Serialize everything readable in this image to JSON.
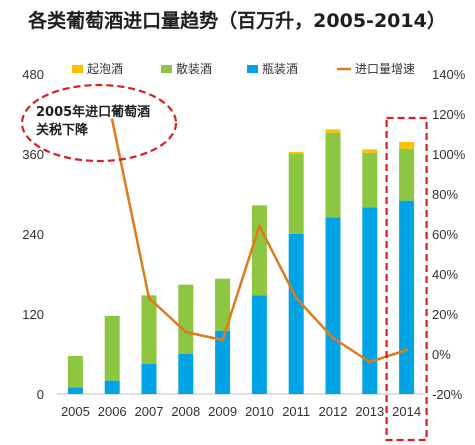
{
  "chart_data": {
    "type": "bar",
    "title": "各类葡萄酒进口量趋势（百万升，2005-2014）",
    "categories": [
      "2005",
      "2006",
      "2007",
      "2008",
      "2009",
      "2010",
      "2011",
      "2012",
      "2013",
      "2014"
    ],
    "series": [
      {
        "name": "瓶装酒",
        "kind": "bar",
        "axis": "left",
        "color": "#00a4e4",
        "values": [
          10,
          20,
          45,
          60,
          95,
          148,
          240,
          265,
          280,
          290
        ]
      },
      {
        "name": "散装酒",
        "kind": "bar",
        "axis": "left",
        "color": "#8dc641",
        "values": [
          47,
          97,
          103,
          104,
          78,
          135,
          120,
          127,
          82,
          78
        ]
      },
      {
        "name": "起泡酒",
        "kind": "bar",
        "axis": "left",
        "color": "#ffc000",
        "values": [
          0,
          0,
          0,
          0,
          0,
          0,
          3,
          5,
          5,
          10
        ]
      },
      {
        "name": "进口量增速",
        "kind": "line",
        "axis": "right",
        "color": "#e07a1f",
        "unit": "%",
        "values": [
          null,
          117,
          28,
          11,
          7,
          64,
          28,
          8,
          -4,
          2
        ]
      }
    ],
    "ylim": [
      0,
      480
    ],
    "y_ticks": [
      "0",
      "120",
      "240",
      "360",
      "480"
    ],
    "y2lim": [
      -20,
      140
    ],
    "y2_ticks": [
      "-20%",
      "0%",
      "20%",
      "40%",
      "60%",
      "80%",
      "100%",
      "120%",
      "140%"
    ],
    "legend": {
      "placement": "top",
      "items": [
        {
          "label": "起泡酒",
          "color": "#ffc000",
          "kind": "bar"
        },
        {
          "label": "散装酒",
          "color": "#8dc641",
          "kind": "bar"
        },
        {
          "label": "瓶装酒",
          "color": "#00a4e4",
          "kind": "bar"
        },
        {
          "label": "进口量增速",
          "color": "#e07a1f",
          "kind": "line"
        }
      ]
    },
    "annotations": [
      {
        "text_lines": [
          "2005年进口葡萄酒",
          "关税下降"
        ],
        "shape": "dashed-ellipse",
        "color": "#d9201f"
      },
      {
        "text": "",
        "shape": "dashed-rect",
        "target": "2014",
        "color": "#d9201f"
      }
    ]
  }
}
